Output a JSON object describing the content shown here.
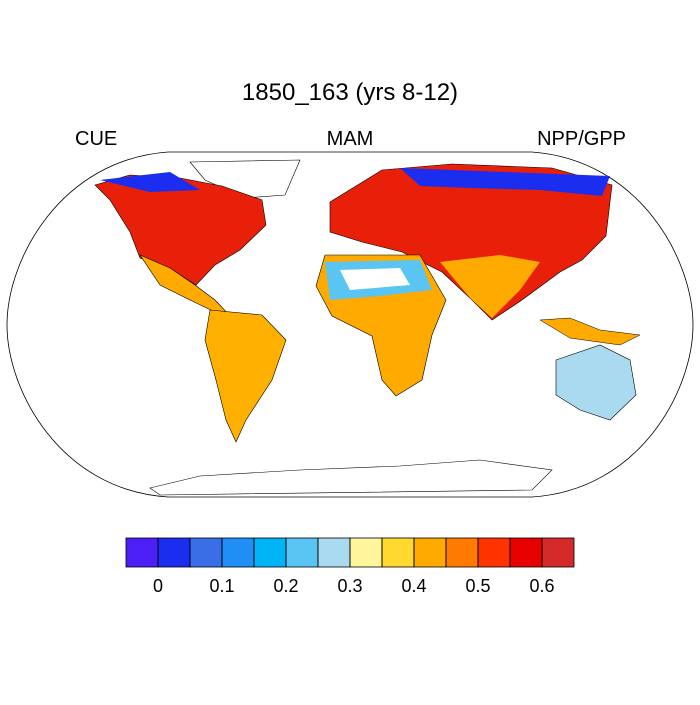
{
  "title": "1850_163 (yrs 8-12)",
  "left_label": "CUE",
  "center_label": "MAM",
  "right_label": "NPP/GPP",
  "colorbar": {
    "colors": [
      "#4b1ff5",
      "#1b2ef0",
      "#3a6ee6",
      "#1f8ef5",
      "#00b4f5",
      "#5ac4f2",
      "#aadaf0",
      "#fff59a",
      "#ffd830",
      "#ffaa00",
      "#ff7a00",
      "#ff3300",
      "#e60000",
      "#d42a2a"
    ],
    "levels": [
      0,
      0.05,
      0.1,
      0.15,
      0.2,
      0.25,
      0.3,
      0.35,
      0.4,
      0.45,
      0.5,
      0.55,
      0.6
    ],
    "ticks": [
      0,
      0.1,
      0.2,
      0.3,
      0.4,
      0.5,
      0.6
    ]
  }
}
